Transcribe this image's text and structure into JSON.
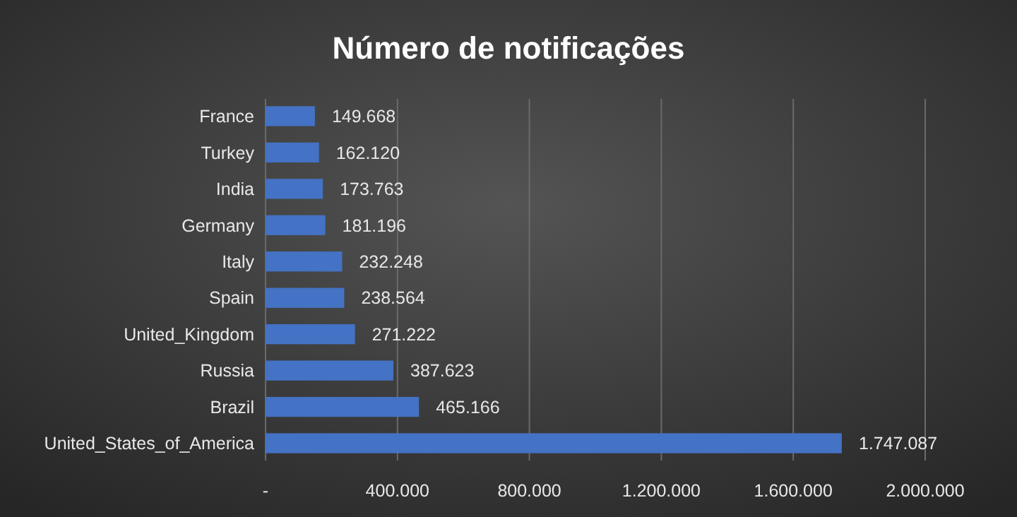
{
  "chart_data": {
    "type": "bar",
    "orientation": "horizontal",
    "title": "Número de notificações",
    "categories": [
      "France",
      "Turkey",
      "India",
      "Germany",
      "Italy",
      "Spain",
      "United_Kingdom",
      "Russia",
      "Brazil",
      "United_States_of_America"
    ],
    "values": [
      149668,
      162120,
      173763,
      181196,
      232248,
      238564,
      271222,
      387623,
      465166,
      1747087
    ],
    "value_labels": [
      "149.668",
      "162.120",
      "173.763",
      "181.196",
      "232.248",
      "238.564",
      "271.222",
      "387.623",
      "465.166",
      "1.747.087"
    ],
    "color": "#4472c4",
    "xlim": [
      0,
      2000000
    ],
    "xticks": [
      {
        "value": 0,
        "label": "-"
      },
      {
        "value": 400000,
        "label": "400.000"
      },
      {
        "value": 800000,
        "label": "800.000"
      },
      {
        "value": 1200000,
        "label": "1.200.000"
      },
      {
        "value": 1600000,
        "label": "1.600.000"
      },
      {
        "value": 2000000,
        "label": "2.000.000"
      }
    ],
    "grid": "x"
  }
}
